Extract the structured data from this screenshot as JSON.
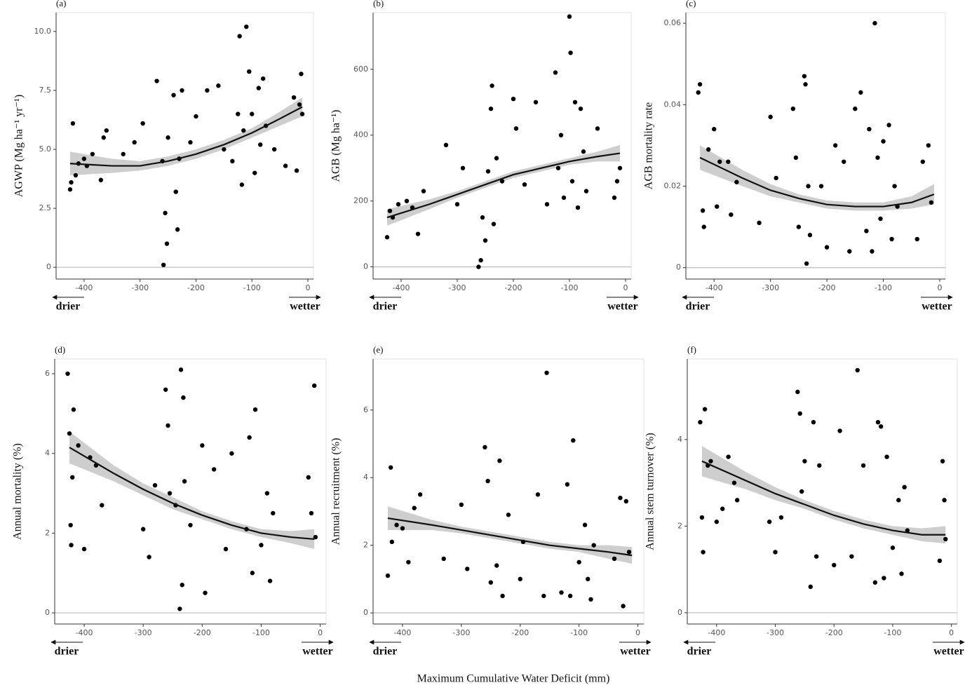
{
  "figure_xlabel": "Maximum Cumulative Water Deficit (mm)",
  "chart_data": [
    {
      "type": "scatter",
      "title": "(a)",
      "ylabel": "AGWP (Mg ha⁻¹ yr⁻¹)",
      "xlim": [
        -450,
        10
      ],
      "ylim": [
        -0.5,
        10.8
      ],
      "xticks": [
        -400,
        -300,
        -200,
        -100,
        0
      ],
      "yticks": [
        0,
        2.5,
        {
          "value": 5,
          "label": "5.0"
        },
        7.5,
        {
          "value": 10,
          "label": "10.0"
        }
      ],
      "hline": 0,
      "left_note": "drier",
      "right_note": "wetter",
      "x": [
        -425,
        -423,
        -420,
        -415,
        -410,
        -400,
        -395,
        -385,
        -370,
        -365,
        -360,
        -330,
        -310,
        -295,
        -270,
        -260,
        -258,
        -255,
        -252,
        -250,
        -240,
        -236,
        -233,
        -230,
        -225,
        -210,
        -200,
        -180,
        -160,
        -150,
        -135,
        -125,
        -122,
        -118,
        -115,
        -110,
        -105,
        -100,
        -95,
        -88,
        -85,
        -80,
        -75,
        -60,
        -40,
        -25,
        -20,
        -15,
        -12,
        -10
      ],
      "values": [
        3.3,
        3.6,
        6.1,
        3.9,
        4.4,
        4.6,
        4.3,
        4.8,
        3.7,
        5.5,
        5.8,
        4.8,
        5.3,
        6.1,
        7.9,
        4.5,
        0.1,
        2.3,
        1.0,
        5.5,
        7.3,
        3.2,
        1.6,
        4.6,
        7.5,
        5.3,
        6.4,
        7.5,
        7.7,
        5.0,
        4.5,
        6.5,
        9.8,
        3.5,
        5.8,
        10.2,
        8.3,
        6.5,
        4.0,
        7.6,
        5.2,
        8.0,
        6.0,
        5.0,
        4.3,
        7.2,
        4.1,
        6.9,
        8.2,
        6.5
      ],
      "fit": {
        "x": [
          -425,
          -350,
          -300,
          -250,
          -200,
          -150,
          -100,
          -50,
          -10
        ],
        "values": [
          4.4,
          4.3,
          4.3,
          4.5,
          4.8,
          5.2,
          5.7,
          6.3,
          6.8
        ],
        "lower": [
          3.9,
          4.0,
          4.1,
          4.3,
          4.6,
          5.0,
          5.5,
          6.0,
          6.4
        ],
        "upper": [
          4.9,
          4.6,
          4.5,
          4.7,
          5.0,
          5.4,
          5.9,
          6.6,
          7.2
        ]
      }
    },
    {
      "type": "scatter",
      "title": "(b)",
      "ylabel": "AGB (Mg ha⁻¹)",
      "xlim": [
        -450,
        10
      ],
      "ylim": [
        -37,
        772
      ],
      "xticks": [
        -400,
        -300,
        -200,
        -100,
        0
      ],
      "yticks": [
        0,
        200,
        400,
        600
      ],
      "hline": 0,
      "left_note": "drier",
      "right_note": "wetter",
      "x": [
        -425,
        -420,
        -415,
        -405,
        -390,
        -380,
        -370,
        -360,
        -320,
        -300,
        -290,
        -262,
        -258,
        -255,
        -250,
        -245,
        -240,
        -238,
        -235,
        -230,
        -220,
        -200,
        -195,
        -180,
        -160,
        -140,
        -125,
        -120,
        -115,
        -110,
        -100,
        -98,
        -95,
        -90,
        -85,
        -80,
        -75,
        -70,
        -50,
        -20,
        -15,
        -10
      ],
      "values": [
        90,
        170,
        150,
        190,
        200,
        180,
        100,
        230,
        370,
        190,
        300,
        0,
        20,
        150,
        80,
        290,
        480,
        550,
        130,
        330,
        260,
        510,
        420,
        250,
        500,
        190,
        590,
        300,
        400,
        210,
        760,
        650,
        260,
        500,
        180,
        480,
        350,
        230,
        420,
        210,
        260,
        300
      ],
      "fit": {
        "x": [
          -425,
          -350,
          -300,
          -250,
          -200,
          -150,
          -100,
          -50,
          -10
        ],
        "values": [
          150,
          190,
          220,
          250,
          280,
          300,
          320,
          335,
          345
        ],
        "lower": [
          125,
          175,
          210,
          240,
          270,
          290,
          310,
          320,
          320
        ],
        "upper": [
          175,
          205,
          230,
          260,
          290,
          310,
          330,
          350,
          370
        ]
      }
    },
    {
      "type": "scatter",
      "title": "(c)",
      "ylabel": "AGB mortality rate",
      "xlim": [
        -450,
        10
      ],
      "ylim": [
        -0.0028,
        0.0626
      ],
      "xticks": [
        -400,
        -300,
        -200,
        -100,
        0
      ],
      "yticks": [
        0,
        0.02,
        0.04,
        0.06
      ],
      "hline": 0,
      "left_note": "drier",
      "right_note": "wetter",
      "x": [
        -428,
        -425,
        -420,
        -418,
        -410,
        -400,
        -395,
        -390,
        -375,
        -370,
        -360,
        -320,
        -300,
        -290,
        -260,
        -255,
        -250,
        -240,
        -238,
        -236,
        -233,
        -230,
        -210,
        -200,
        -185,
        -170,
        -160,
        -150,
        -140,
        -130,
        -125,
        -120,
        -115,
        -110,
        -105,
        -100,
        -90,
        -85,
        -80,
        -75,
        -40,
        -30,
        -20,
        -15
      ],
      "values": [
        0.043,
        0.045,
        0.014,
        0.01,
        0.029,
        0.034,
        0.015,
        0.026,
        0.026,
        0.013,
        0.021,
        0.011,
        0.037,
        0.022,
        0.039,
        0.027,
        0.01,
        0.047,
        0.045,
        0.001,
        0.02,
        0.008,
        0.02,
        0.005,
        0.03,
        0.026,
        0.004,
        0.039,
        0.043,
        0.009,
        0.034,
        0.004,
        0.06,
        0.027,
        0.012,
        0.031,
        0.035,
        0.007,
        0.02,
        0.015,
        0.007,
        0.026,
        0.03,
        0.016
      ],
      "fit": {
        "x": [
          -425,
          -350,
          -300,
          -250,
          -200,
          -150,
          -100,
          -50,
          -10
        ],
        "values": [
          0.027,
          0.022,
          0.019,
          0.017,
          0.0155,
          0.015,
          0.015,
          0.016,
          0.018
        ],
        "lower": [
          0.024,
          0.02,
          0.0175,
          0.016,
          0.0145,
          0.014,
          0.014,
          0.0145,
          0.0155
        ],
        "upper": [
          0.03,
          0.024,
          0.0205,
          0.018,
          0.0165,
          0.016,
          0.016,
          0.0175,
          0.0205
        ]
      }
    },
    {
      "type": "scatter",
      "title": "(d)",
      "ylabel": "Annual mortality (%)",
      "xlim": [
        -450,
        10
      ],
      "ylim": [
        -0.28,
        6.37
      ],
      "xticks": [
        -400,
        -300,
        -200,
        -100,
        0
      ],
      "yticks": [
        0,
        2,
        4,
        6
      ],
      "hline": 0,
      "left_note": "drier",
      "right_note": "wetter",
      "x": [
        -428,
        -425,
        -423,
        -422,
        -420,
        -418,
        -410,
        -400,
        -390,
        -380,
        -370,
        -300,
        -290,
        -280,
        -262,
        -258,
        -255,
        -245,
        -238,
        -236,
        -234,
        -232,
        -230,
        -220,
        -200,
        -195,
        -180,
        -160,
        -150,
        -125,
        -120,
        -115,
        -110,
        -100,
        -90,
        -85,
        -80,
        -20,
        -15,
        -10,
        -8
      ],
      "values": [
        6.0,
        4.5,
        2.2,
        1.7,
        3.4,
        5.1,
        4.2,
        1.6,
        3.9,
        3.7,
        2.7,
        2.1,
        1.4,
        3.2,
        5.6,
        4.7,
        3.0,
        2.7,
        0.1,
        6.1,
        0.7,
        5.4,
        3.3,
        2.2,
        4.2,
        0.5,
        3.6,
        1.6,
        4.0,
        2.1,
        4.4,
        1.0,
        5.1,
        1.7,
        3.0,
        0.8,
        2.5,
        3.4,
        2.5,
        5.7,
        1.9
      ],
      "fit": {
        "x": [
          -425,
          -350,
          -300,
          -250,
          -200,
          -150,
          -100,
          -50,
          -10
        ],
        "values": [
          4.15,
          3.5,
          3.1,
          2.75,
          2.45,
          2.2,
          2.0,
          1.9,
          1.85
        ],
        "lower": [
          3.75,
          3.3,
          2.95,
          2.6,
          2.35,
          2.1,
          1.9,
          1.75,
          1.6
        ],
        "upper": [
          4.55,
          3.7,
          3.25,
          2.9,
          2.55,
          2.3,
          2.1,
          2.05,
          2.1
        ]
      }
    },
    {
      "type": "scatter",
      "title": "(e)",
      "ylabel": "Annual recruitment (%)",
      "xlim": [
        -450,
        10
      ],
      "ylim": [
        -0.33,
        7.51
      ],
      "xticks": [
        -400,
        -300,
        -200,
        -100,
        0
      ],
      "yticks": [
        0,
        2,
        4,
        6
      ],
      "hline": 0,
      "left_note": "drier",
      "right_note": "wetter",
      "x": [
        -425,
        -420,
        -418,
        -410,
        -400,
        -390,
        -380,
        -370,
        -330,
        -300,
        -290,
        -260,
        -255,
        -250,
        -240,
        -235,
        -230,
        -220,
        -200,
        -195,
        -170,
        -160,
        -155,
        -130,
        -120,
        -115,
        -110,
        -100,
        -90,
        -85,
        -80,
        -75,
        -40,
        -30,
        -25,
        -20,
        -15
      ],
      "values": [
        1.1,
        4.3,
        2.1,
        2.6,
        2.5,
        1.5,
        3.1,
        3.5,
        1.6,
        3.2,
        1.3,
        4.9,
        3.9,
        0.9,
        1.4,
        4.5,
        0.5,
        2.9,
        1.0,
        2.1,
        3.5,
        0.5,
        7.1,
        0.6,
        3.8,
        0.5,
        5.1,
        1.5,
        2.6,
        1.0,
        0.4,
        2.0,
        1.6,
        3.4,
        0.2,
        3.3,
        1.8
      ],
      "fit": {
        "x": [
          -425,
          -350,
          -300,
          -250,
          -200,
          -150,
          -100,
          -50,
          -10
        ],
        "values": [
          2.8,
          2.6,
          2.45,
          2.3,
          2.15,
          2.0,
          1.9,
          1.8,
          1.7
        ],
        "lower": [
          2.45,
          2.45,
          2.35,
          2.2,
          2.05,
          1.9,
          1.8,
          1.6,
          1.45
        ],
        "upper": [
          3.15,
          2.75,
          2.55,
          2.4,
          2.25,
          2.1,
          2.0,
          2.0,
          1.95
        ]
      }
    },
    {
      "type": "scatter",
      "title": "(f)",
      "ylabel": "Annual stem turnover (%)",
      "xlim": [
        -450,
        10
      ],
      "ylim": [
        -0.26,
        5.86
      ],
      "xticks": [
        -400,
        -300,
        -200,
        -100,
        0
      ],
      "yticks": [
        0,
        2,
        4
      ],
      "hline": 0,
      "left_note": "drier",
      "right_note": "wetter",
      "x": [
        -428,
        -425,
        -423,
        -420,
        -415,
        -410,
        -400,
        -390,
        -380,
        -370,
        -365,
        -310,
        -300,
        -290,
        -262,
        -258,
        -255,
        -250,
        -240,
        -235,
        -230,
        -225,
        -200,
        -190,
        -170,
        -160,
        -150,
        -130,
        -125,
        -120,
        -115,
        -110,
        -100,
        -90,
        -85,
        -80,
        -75,
        -20,
        -15,
        -12,
        -10
      ],
      "values": [
        4.4,
        2.2,
        1.4,
        4.7,
        3.4,
        3.5,
        2.1,
        2.4,
        3.6,
        3.0,
        2.6,
        2.1,
        1.4,
        2.2,
        5.1,
        4.6,
        2.8,
        3.5,
        0.6,
        4.4,
        1.3,
        3.4,
        1.1,
        4.2,
        1.3,
        5.6,
        3.4,
        0.7,
        4.4,
        4.3,
        0.8,
        3.6,
        1.5,
        2.6,
        0.9,
        2.9,
        1.9,
        1.2,
        3.5,
        2.6,
        1.7
      ],
      "fit": {
        "x": [
          -425,
          -350,
          -300,
          -250,
          -200,
          -150,
          -100,
          -50,
          -10
        ],
        "values": [
          3.5,
          3.05,
          2.75,
          2.5,
          2.25,
          2.05,
          1.9,
          1.8,
          1.8
        ],
        "lower": [
          3.15,
          2.85,
          2.6,
          2.4,
          2.15,
          1.95,
          1.8,
          1.65,
          1.6
        ],
        "upper": [
          3.85,
          3.25,
          2.9,
          2.6,
          2.35,
          2.15,
          2.0,
          1.95,
          2.0
        ]
      }
    }
  ]
}
